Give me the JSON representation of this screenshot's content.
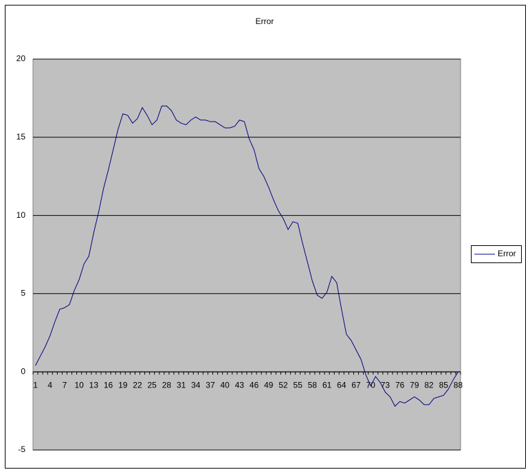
{
  "chart_data": {
    "type": "line",
    "title": "Error",
    "categories": [
      1,
      null,
      null,
      4,
      null,
      null,
      7,
      null,
      null,
      10,
      null,
      null,
      13,
      null,
      null,
      16,
      null,
      null,
      19,
      null,
      null,
      22,
      null,
      null,
      25,
      null,
      null,
      28,
      null,
      null,
      31,
      null,
      null,
      34,
      null,
      null,
      37,
      null,
      null,
      40,
      null,
      null,
      43,
      null,
      null,
      46,
      null,
      null,
      49,
      null,
      null,
      52,
      null,
      null,
      55,
      null,
      null,
      58,
      null,
      null,
      61,
      null,
      null,
      64,
      null,
      null,
      67,
      null,
      null,
      70,
      null,
      null,
      73,
      null,
      null,
      76,
      null,
      null,
      79,
      null,
      null,
      82,
      null,
      null,
      85,
      null,
      null,
      88
    ],
    "series": [
      {
        "name": "Error",
        "color": "#000080",
        "values": [
          0.4,
          1.0,
          1.6,
          2.3,
          3.2,
          4.0,
          4.1,
          4.3,
          5.2,
          5.9,
          6.9,
          7.4,
          8.9,
          10.2,
          11.7,
          12.9,
          14.2,
          15.5,
          16.5,
          16.4,
          15.9,
          16.2,
          16.9,
          16.4,
          15.8,
          16.1,
          17.0,
          17.0,
          16.7,
          16.1,
          15.9,
          15.8,
          16.1,
          16.3,
          16.1,
          16.1,
          16.0,
          16.0,
          15.8,
          15.6,
          15.6,
          15.7,
          16.1,
          16.0,
          14.9,
          14.2,
          13.0,
          12.5,
          11.8,
          11.0,
          10.3,
          9.8,
          9.1,
          9.6,
          9.5,
          8.2,
          7.0,
          5.8,
          4.9,
          4.7,
          5.1,
          6.1,
          5.7,
          4.0,
          2.4,
          2.0,
          1.4,
          0.8,
          -0.2,
          -0.9,
          -0.3,
          -0.7,
          -1.3,
          -1.6,
          -2.2,
          -1.9,
          -2.0,
          -1.8,
          -1.6,
          -1.8,
          -2.1,
          -2.1,
          -1.7,
          -1.6,
          -1.5,
          -1.1,
          -0.5,
          0.0
        ]
      }
    ],
    "ylim": [
      -5,
      20
    ],
    "yticks": [
      -5,
      0,
      5,
      10,
      15,
      20
    ],
    "grid": true,
    "legend": "right"
  }
}
